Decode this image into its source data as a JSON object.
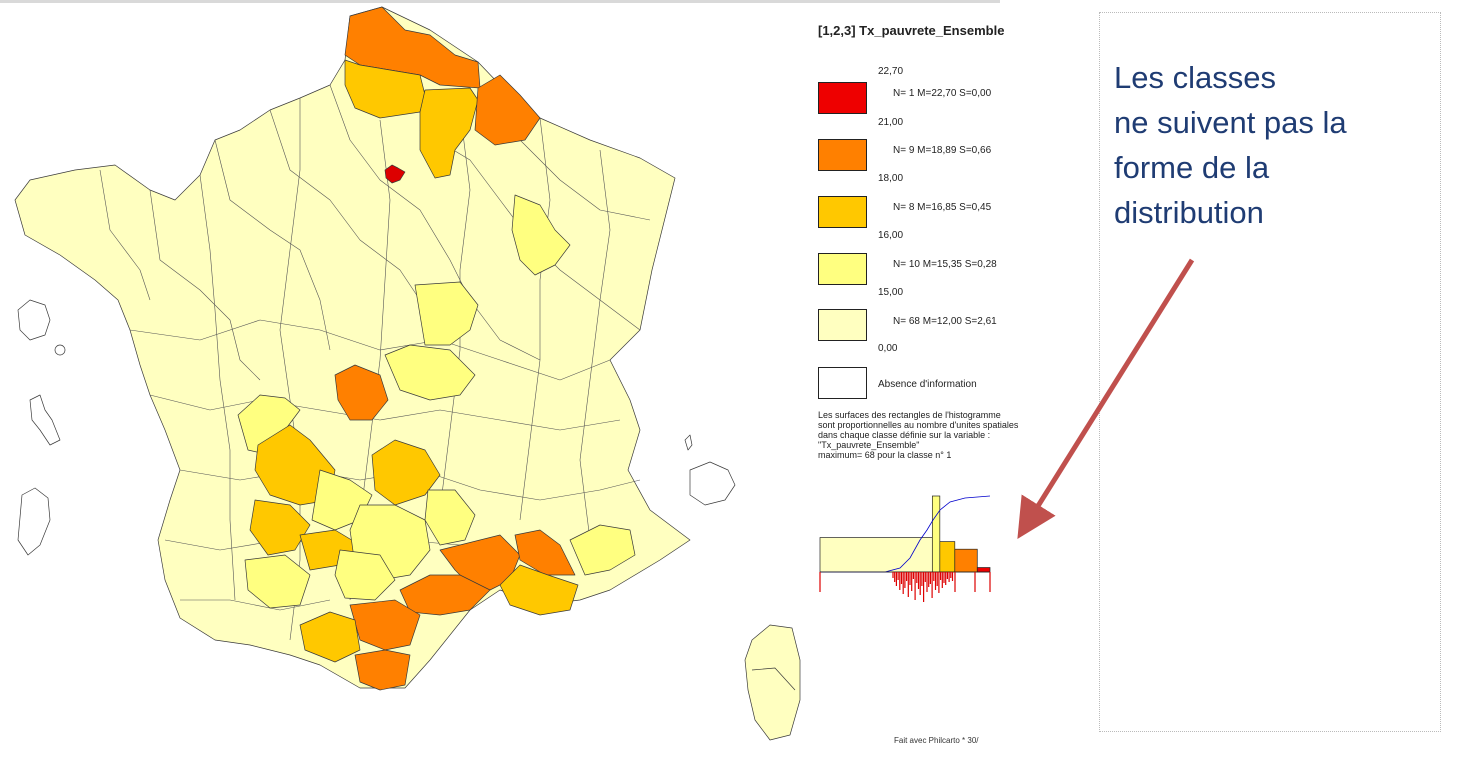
{
  "map": {
    "legend": {
      "title": "[1,2,3] Tx_pauvrete_Ensemble",
      "bounds": [
        "22,70",
        "21,00",
        "18,00",
        "16,00",
        "15,00",
        "0,00"
      ],
      "classes": [
        {
          "color": "#ee0000",
          "stats": "N= 1  M=22,70  S=0,00"
        },
        {
          "color": "#ff8000",
          "stats": "N= 9  M=18,89  S=0,66"
        },
        {
          "color": "#ffc800",
          "stats": "N= 8  M=16,85  S=0,45"
        },
        {
          "color": "#ffff80",
          "stats": "N= 10  M=15,35  S=0,28"
        },
        {
          "color": "#ffffc0",
          "stats": "N= 68  M=12,00  S=2,61"
        }
      ],
      "no_data": {
        "color": "#ffffff",
        "label": "Absence d'information"
      },
      "note_lines": [
        "Les surfaces des rectangles de l'histogramme",
        "sont proportionnelles au nombre d'unites spatiales",
        "dans chaque classe définie sur la variable :",
        "\"Tx_pauvrete_Ensemble\"",
        "maximum= 68 pour la classe n° 1"
      ]
    },
    "histogram": {
      "classes": [
        {
          "min": 0.0,
          "max": 15.0,
          "count": 68,
          "color": "#ffffc0"
        },
        {
          "min": 15.0,
          "max": 16.0,
          "count": 10,
          "color": "#ffff80"
        },
        {
          "min": 16.0,
          "max": 18.0,
          "count": 8,
          "color": "#ffc800"
        },
        {
          "min": 18.0,
          "max": 21.0,
          "count": 9,
          "color": "#ff8000"
        },
        {
          "min": 21.0,
          "max": 22.7,
          "count": 1,
          "color": "#ee0000"
        }
      ]
    },
    "credit": "Fait avec Philcarto * 30/"
  },
  "callout": {
    "lines": [
      "Les classes",
      "ne  suivent pas la",
      "forme de la",
      "distribution"
    ],
    "text_color": "#1f3c73",
    "arrow_color": "#c0504d"
  }
}
